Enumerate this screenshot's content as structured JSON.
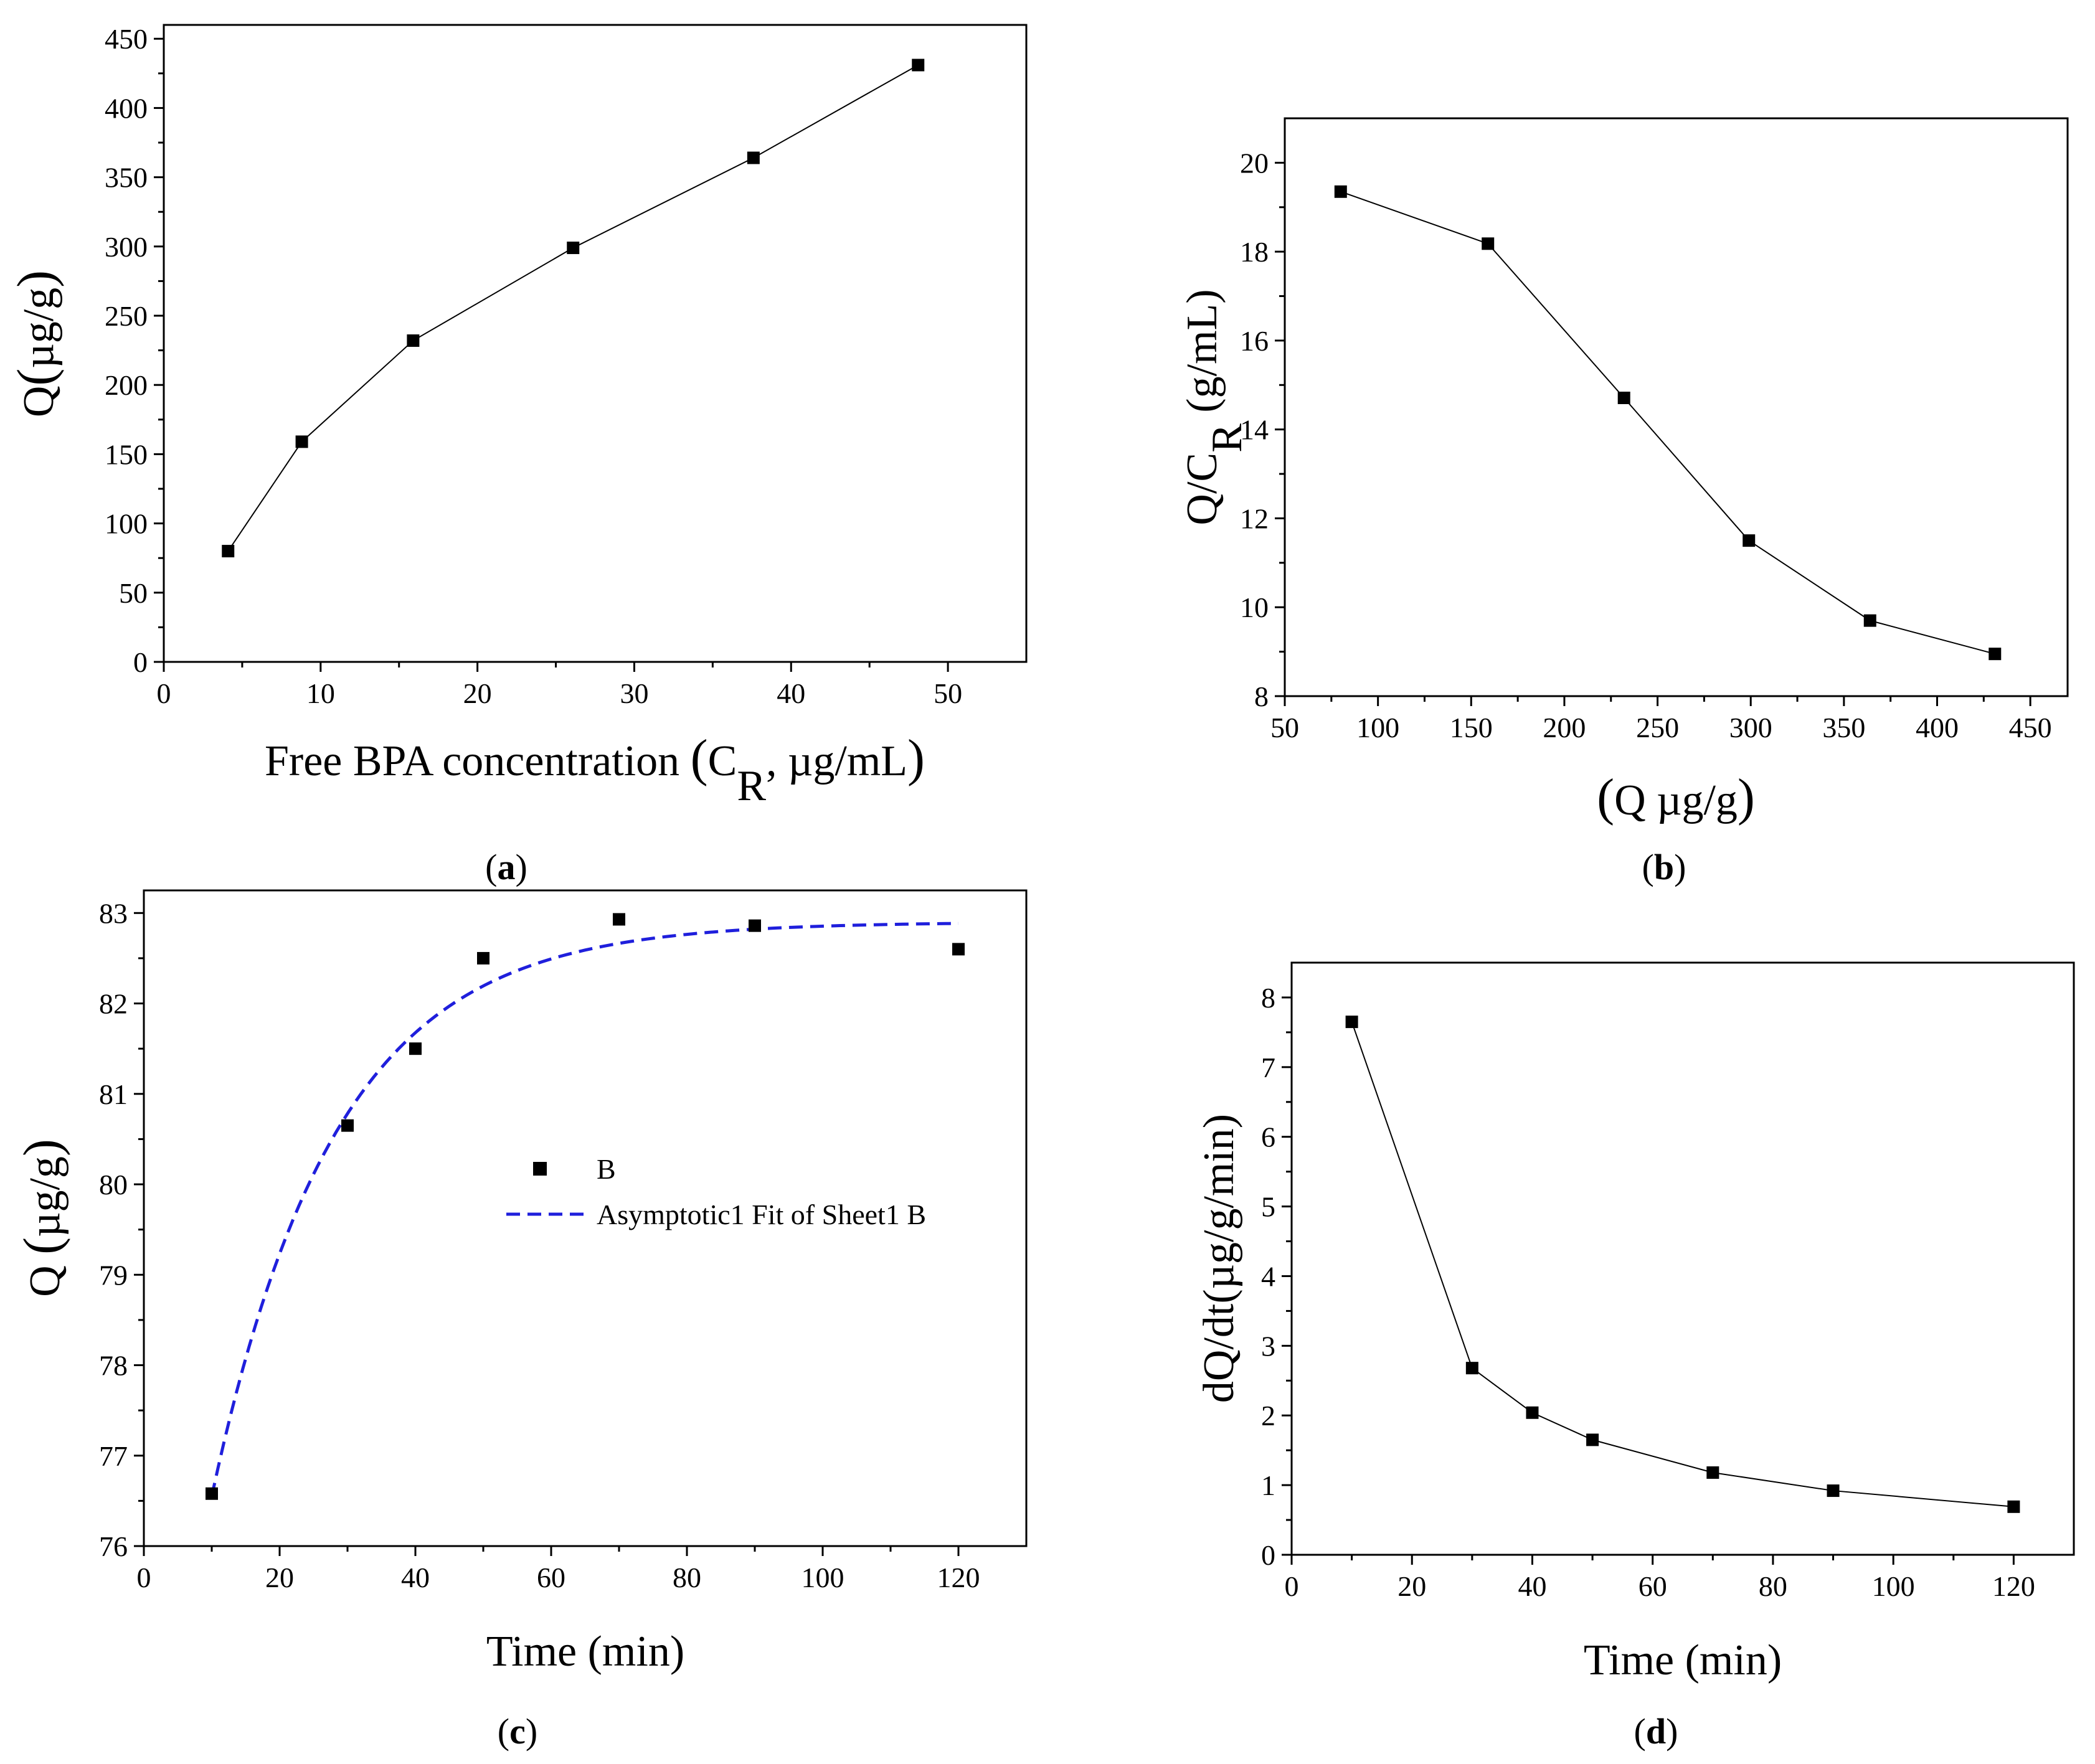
{
  "chart_data": [
    {
      "id": "a",
      "panel_label": "a",
      "type": "line",
      "x": [
        4.1,
        8.8,
        15.9,
        26.1,
        37.6,
        48.1
      ],
      "y": [
        80,
        159,
        232,
        299,
        364,
        431
      ],
      "xlim": [
        0,
        55
      ],
      "ylim": [
        0,
        460
      ],
      "xticks": [
        0,
        10,
        20,
        30,
        40,
        50
      ],
      "yticks": [
        0,
        50,
        100,
        150,
        200,
        250,
        300,
        350,
        400,
        450
      ],
      "xlabel": {
        "pre": "Free BPA concentration ",
        "open": "(",
        "base": "C",
        "sub": "R",
        "post": ", µg/mL",
        "close": ")"
      },
      "ylabel": {
        "base": "Q",
        "open": "(",
        "inner": "µg/g",
        "close": ")"
      },
      "marker": "square",
      "series_color": "#000000"
    },
    {
      "id": "b",
      "panel_label": "b",
      "type": "line",
      "x": [
        80,
        159,
        232,
        299,
        364,
        431
      ],
      "y": [
        19.35,
        18.18,
        14.71,
        11.5,
        9.7,
        8.95
      ],
      "xlim": [
        50,
        470
      ],
      "ylim": [
        8,
        21
      ],
      "xticks": [
        50,
        100,
        150,
        200,
        250,
        300,
        350,
        400,
        450
      ],
      "yticks": [
        8,
        10,
        12,
        14,
        16,
        18,
        20
      ],
      "xlabel": {
        "base": "Q ",
        "open": "(",
        "inner": "µg/g",
        "close": ")"
      },
      "ylabel": {
        "pre": "Q/",
        "base": "C",
        "sub": "R",
        "post": " (g/mL)"
      },
      "marker": "square",
      "series_color": "#000000"
    },
    {
      "id": "c",
      "panel_label": "c",
      "type": "scatter",
      "x": [
        10,
        30,
        40,
        50,
        70,
        90,
        120
      ],
      "y": [
        76.58,
        80.65,
        81.5,
        82.5,
        82.93,
        82.86,
        82.6
      ],
      "xlim": [
        0,
        130
      ],
      "ylim": [
        76,
        83.25
      ],
      "xticks": [
        0,
        20,
        40,
        60,
        80,
        100,
        120
      ],
      "yticks": [
        76,
        77,
        78,
        79,
        80,
        81,
        82,
        83
      ],
      "xlabel": {
        "text": "Time (min)"
      },
      "ylabel": {
        "base": "Q ",
        "open": "(",
        "inner": "µg/g",
        "close": ")"
      },
      "legend": [
        "B",
        "Asymptotic1 Fit of Sheet1 B"
      ],
      "fit": {
        "type": "asymptotic",
        "a": 82.9,
        "b": 6.35,
        "k": 0.0549,
        "x0": 10,
        "x_range": [
          10,
          120
        ],
        "color": "#1f1fdc"
      },
      "marker": "square",
      "series_color": "#000000"
    },
    {
      "id": "d",
      "panel_label": "d",
      "type": "line",
      "x": [
        10,
        30,
        40,
        50,
        70,
        90,
        120
      ],
      "y": [
        7.65,
        2.68,
        2.04,
        1.65,
        1.18,
        0.92,
        0.69
      ],
      "xlim": [
        0,
        130
      ],
      "ylim": [
        0,
        8.5
      ],
      "xticks": [
        0,
        20,
        40,
        60,
        80,
        100,
        120
      ],
      "yticks": [
        0,
        1,
        2,
        3,
        4,
        5,
        6,
        7,
        8
      ],
      "xlabel": {
        "text": "Time (min)"
      },
      "ylabel": {
        "text": "dQ/dt(µg/g/min)"
      },
      "marker": "square",
      "series_color": "#000000"
    }
  ]
}
